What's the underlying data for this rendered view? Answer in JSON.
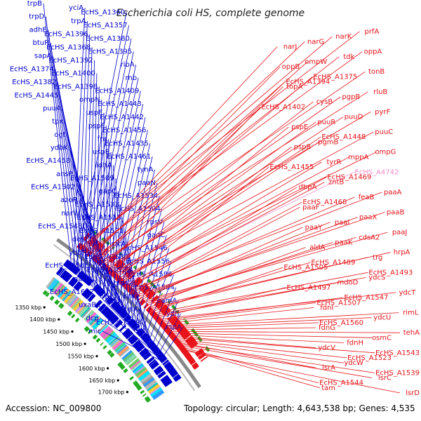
{
  "title": "Escherichia coli HS, complete genome",
  "footer": {
    "accession_label": "Accession:",
    "accession": "NC_009800",
    "topology_label": "Topology:",
    "topology": "circular",
    "length_label": "Length:",
    "length": "4,643,538 bp",
    "genes_label": "Genes:",
    "genes": "4,535"
  },
  "colors": {
    "forward": "#0000cc",
    "reverse": "#e8141a",
    "highlight": "#f08cc8",
    "backbone": "#888888"
  },
  "scale_ticks": [
    {
      "label": "1350 kbp"
    },
    {
      "label": "1400 kbp"
    },
    {
      "label": "1450 kbp"
    },
    {
      "label": "1500 kbp"
    },
    {
      "label": "1550 kbp"
    },
    {
      "label": "1600 kbp"
    },
    {
      "label": "1650 kbp"
    },
    {
      "label": "1700 kbp"
    }
  ],
  "forward_genes": [
    "trpB",
    "yciA",
    "EcHS_A1360",
    "trpD",
    "trpA",
    "EcHS_A1357",
    "adhE",
    "EcHS_A1396",
    "EcHS_A1380",
    "btuR",
    "EcHS_A1368",
    "EcHS_A1395",
    "sapA",
    "EcHS_A1392",
    "ribA",
    "EcHS_A1374",
    "EcHS_A1400",
    "rnb",
    "EcHS_A1382",
    "EcHS_A1398",
    "EcHS_A1409",
    "EcHS_A1445",
    "ompN",
    "EcHS_A1443",
    "puuA",
    "uspF",
    "EcHS_A1442",
    "tpx",
    "pspF",
    "EcHS_A1456",
    "ogt",
    "fnr",
    "EcHS_A1435",
    "ydbK",
    "uspE",
    "EcHS_A1461",
    "EcHS_A1458",
    "idhA",
    "tynA",
    "ansP",
    "EcHS_A1509",
    "paaN",
    "EcHS_A1502",
    "gapC",
    "EcHS_A1534",
    "azoR",
    "EcHS_A1533",
    "EcHS_A1504",
    "narW",
    "EcHS_A1518",
    "rpsV",
    "EcHS_A1548",
    "EcHS_A1521",
    "gadC",
    "dos",
    "sfcA",
    "EcHS_A1546",
    "yddR",
    "EcHS_A1580",
    "EcHS_A1556",
    "EcHS_A1585",
    "EcHS_A1572",
    "EcHS_A1586",
    "gadB",
    "glsA2",
    "EcHS_A1584",
    "EcHS_A1602",
    "lsrK",
    "eamA",
    "uxaB",
    "celA",
    "ydfJ",
    "dcp",
    "EcHS_A1639",
    "rspA",
    "mic"
  ],
  "reverse_genes": [
    "prfA",
    "narK",
    "narG",
    "narJ",
    "oppA",
    "tdk",
    "ompW",
    "oppB",
    "tonB",
    "EcHS_A1375",
    "EcHS_A1394",
    "topA",
    "rluB",
    "pgpB",
    "cysB",
    "EcHS_A1402",
    "pyrF",
    "puuD",
    "puuR",
    "pspE",
    "puuC",
    "EcHS_A1448",
    "pgmB",
    "pspB",
    "ompG",
    "mppA",
    "tyrR",
    "EcHS_A1455",
    "EcHS_A4742",
    "EcHS_A1469",
    "zntB",
    "dbpA",
    "paaA",
    "feaB",
    "EcHS_A1468",
    "paaF",
    "paaB",
    "paaX",
    "paaI",
    "paaY",
    "paaJ",
    "cdsA2",
    "paaK",
    "aldA",
    "hrpA",
    "trg",
    "EcHS_A1489",
    "EcHS_A1505",
    "EcHS_A1493",
    "ydcS",
    "mdoD",
    "EcHS_A1497",
    "ydcT",
    "EcHS_A1547",
    "EcHS_A1507",
    "fdnI",
    "rimL",
    "ydcU",
    "EcHS_A1560",
    "fdnG",
    "tehA",
    "osmC",
    "fdnH",
    "ydcV",
    "EcHS_A1543",
    "EcHS_A1523",
    "ydcW",
    "lsrA",
    "EcHS_A1539",
    "lsrC",
    "EcHS_A1544",
    "tam",
    "lsrD"
  ]
}
